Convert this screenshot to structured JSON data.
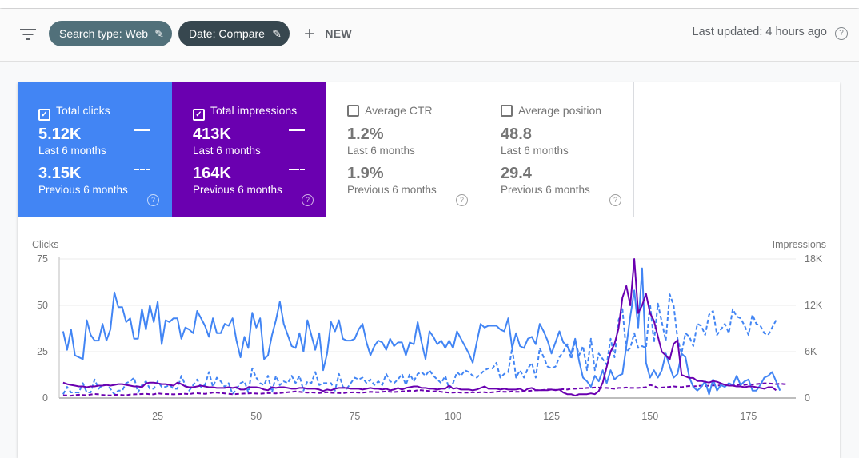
{
  "header": {
    "filter_chips": [
      {
        "label": "Search type: Web",
        "color": "#51707a"
      },
      {
        "label": "Date: Compare",
        "color": "#37474f"
      }
    ],
    "new_label": "NEW",
    "last_updated": "Last updated: 4 hours ago"
  },
  "metrics": [
    {
      "label": "Total clicks",
      "checked": true,
      "color": "#4285f4",
      "current_value": "5.12K",
      "current_period": "Last 6 months",
      "previous_value": "3.15K",
      "previous_period": "Previous 6 months"
    },
    {
      "label": "Total impressions",
      "checked": true,
      "color": "#6a00b0",
      "current_value": "413K",
      "current_period": "Last 6 months",
      "previous_value": "164K",
      "previous_period": "Previous 6 months"
    },
    {
      "label": "Average CTR",
      "checked": false,
      "current_value": "1.2%",
      "current_period": "Last 6 months",
      "previous_value": "1.9%",
      "previous_period": "Previous 6 months"
    },
    {
      "label": "Average position",
      "checked": false,
      "current_value": "48.8",
      "current_period": "Last 6 months",
      "previous_value": "29.4",
      "previous_period": "Previous 6 months"
    }
  ],
  "chart_data": {
    "type": "line",
    "ylabel_left": "Clicks",
    "ylabel_right": "Impressions",
    "ylim_left": [
      0,
      75
    ],
    "ylim_right": [
      0,
      18000
    ],
    "yticks_left": [
      "0",
      "25",
      "50",
      "75"
    ],
    "yticks_right": [
      "0",
      "6K",
      "12K",
      "18K"
    ],
    "xticks": [
      25,
      50,
      75,
      100,
      125,
      150,
      175
    ],
    "xlim": [
      0,
      187
    ],
    "grid": true,
    "series": [
      {
        "metric": "clicks",
        "period": "current",
        "axis": "left",
        "style": "solid",
        "color": "#4285f4",
        "values": [
          36,
          26,
          37,
          23,
          22,
          21,
          42,
          34,
          31,
          31,
          40,
          31,
          37,
          57,
          49,
          49,
          41,
          43,
          32,
          32,
          48,
          37,
          50,
          41,
          52,
          29,
          42,
          41,
          43,
          43,
          32,
          38,
          37,
          35,
          47,
          43,
          39,
          33,
          43,
          35,
          35,
          40,
          39,
          43,
          31,
          22,
          33,
          27,
          46,
          38,
          43,
          21,
          23,
          34,
          42,
          52,
          40,
          34,
          28,
          27,
          35,
          25,
          42,
          34,
          26,
          35,
          15,
          24,
          41,
          36,
          42,
          32,
          31,
          31,
          32,
          37,
          40,
          30,
          23,
          28,
          31,
          30,
          26,
          32,
          28,
          30,
          30,
          23,
          30,
          29,
          41,
          30,
          21,
          36,
          33,
          29,
          31,
          27,
          31,
          27,
          36,
          32,
          28,
          24,
          19,
          30,
          40,
          38,
          39,
          39,
          39,
          37,
          36,
          43,
          27,
          35,
          28,
          27,
          32,
          33,
          29,
          40,
          36,
          31,
          24,
          30,
          36,
          30,
          28,
          24,
          32,
          20,
          11,
          9,
          6,
          12,
          9,
          15,
          8,
          15,
          10,
          12,
          13,
          28,
          44,
          58,
          38,
          70,
          19,
          11,
          15,
          11,
          15,
          24,
          17,
          11,
          13,
          24,
          22,
          11,
          6,
          4,
          6,
          9,
          2,
          10,
          4,
          7,
          6,
          8,
          7,
          12,
          7,
          9,
          10,
          4,
          4,
          7,
          11,
          12,
          14,
          9,
          4
        ]
      },
      {
        "metric": "clicks",
        "period": "previous",
        "axis": "left",
        "style": "dashed",
        "color": "#4285f4",
        "values": [
          2,
          6,
          3,
          3,
          3,
          8,
          3,
          3,
          10,
          5,
          7,
          7,
          5,
          2,
          4,
          4,
          8,
          9,
          11,
          3,
          7,
          9,
          5,
          5,
          9,
          6,
          6,
          7,
          5,
          5,
          12,
          7,
          4,
          7,
          10,
          6,
          7,
          14,
          6,
          11,
          9,
          6,
          8,
          2,
          5,
          8,
          9,
          3,
          16,
          11,
          8,
          7,
          12,
          3,
          12,
          7,
          9,
          8,
          12,
          8,
          12,
          4,
          9,
          8,
          14,
          7,
          8,
          8,
          8,
          4,
          13,
          6,
          5,
          8,
          11,
          10,
          11,
          8,
          10,
          7,
          9,
          7,
          13,
          9,
          8,
          10,
          13,
          7,
          13,
          9,
          13,
          14,
          12,
          15,
          12,
          10,
          8,
          12,
          5,
          8,
          14,
          12,
          15,
          14,
          12,
          11,
          13,
          15,
          16,
          16,
          19,
          11,
          13,
          14,
          27,
          11,
          15,
          11,
          16,
          19,
          11,
          27,
          22,
          17,
          16,
          17,
          22,
          25,
          29,
          21,
          31,
          23,
          28,
          15,
          32,
          15,
          24,
          21,
          18,
          32,
          22,
          42,
          48,
          25,
          27,
          35,
          27,
          28,
          27,
          51,
          30,
          51,
          41,
          31,
          56,
          50,
          32,
          24,
          35,
          33,
          28,
          40,
          39,
          34,
          45,
          47,
          34,
          37,
          40,
          35,
          48,
          44,
          43,
          39,
          34,
          45,
          40,
          39,
          35,
          34,
          38,
          42
        ]
      },
      {
        "metric": "impressions",
        "period": "current",
        "axis": "right",
        "style": "solid",
        "color": "#6a00b0",
        "values": [
          2000,
          1800,
          1700,
          1600,
          1500,
          1500,
          1400,
          1500,
          1500,
          1600,
          1600,
          1700,
          1600,
          1700,
          1800,
          1800,
          1700,
          1600,
          1500,
          1500,
          1400,
          1900,
          2000,
          2000,
          1900,
          1800,
          1800,
          1700,
          1600,
          2000,
          1800,
          1500,
          1400,
          1400,
          1500,
          1600,
          1500,
          1400,
          1400,
          1300,
          1300,
          1300,
          1400,
          1300,
          1400,
          1100,
          1100,
          1400,
          1400,
          1400,
          1300,
          1100,
          1000,
          1400,
          1300,
          1400,
          1400,
          1300,
          1200,
          1200,
          1300,
          1300,
          1200,
          1200,
          1200,
          1100,
          900,
          1100,
          1000,
          1200,
          1300,
          1300,
          1300,
          1200,
          1200,
          1200,
          1100,
          1200,
          1300,
          1200,
          1200,
          1100,
          1200,
          1000,
          1100,
          1300,
          1100,
          1300,
          1400,
          1500,
          1500,
          1300,
          1300,
          1200,
          1200,
          1100,
          1200,
          1200,
          1600,
          1200,
          1300,
          1100,
          1100,
          1100,
          1000,
          1100,
          1300,
          1500,
          1200,
          1200,
          1200,
          1100,
          1200,
          1100,
          1100,
          1100,
          1200,
          900,
          1200,
          1300,
          1000,
          1000,
          1000,
          1000,
          1100,
          1000,
          1100,
          700,
          500,
          500,
          300,
          500,
          500,
          500,
          600,
          500,
          900,
          2000,
          4000,
          6000,
          7000,
          9000,
          13000,
          14500,
          12000,
          18000,
          11000,
          12000,
          13500,
          11000,
          10000,
          8000,
          6000,
          5500,
          5000,
          7000,
          7500,
          3000,
          2800,
          2600,
          2600,
          2200,
          2200,
          2100,
          2000,
          2200,
          2100,
          1900,
          1700,
          1600,
          1600,
          1500,
          1500,
          1400,
          1500,
          1500,
          1400,
          1300,
          1200,
          1400,
          1400,
          1000
        ]
      },
      {
        "metric": "impressions",
        "period": "previous",
        "axis": "right",
        "style": "dashed",
        "color": "#6a00b0",
        "values": [
          350,
          330,
          300,
          380,
          420,
          380,
          350,
          450,
          520,
          480,
          400,
          350,
          330,
          400,
          420,
          380,
          350,
          450,
          480,
          500,
          520,
          550,
          500,
          480,
          600,
          550,
          520,
          500,
          480,
          500,
          520,
          550,
          500,
          600,
          620,
          580,
          550,
          600,
          700,
          700,
          650,
          600,
          550,
          500,
          520,
          550,
          580,
          600,
          620,
          580,
          550,
          600,
          650,
          620,
          600,
          650,
          700,
          750,
          800,
          850,
          800,
          750,
          700,
          720,
          700,
          650,
          700,
          750,
          680,
          650,
          650,
          620,
          700,
          720,
          750,
          700,
          700,
          750,
          800,
          780,
          750,
          800,
          850,
          800,
          780,
          820,
          850,
          900,
          950,
          900,
          1000,
          1000,
          950,
          900,
          850,
          900,
          800,
          750,
          700,
          700,
          750,
          700,
          700,
          700,
          750,
          700,
          750,
          750,
          700,
          750,
          800,
          850,
          800,
          800,
          850,
          800,
          800,
          850,
          900,
          950,
          1000,
          1000,
          1050,
          1100,
          1100,
          1050,
          1100,
          1150,
          1100,
          1200,
          1200,
          1250,
          1250,
          1300,
          1300,
          1350,
          1350,
          1300,
          1300,
          1250,
          1200,
          1300,
          1300,
          1350,
          1300,
          1300,
          1300,
          1350,
          1400,
          1700,
          1550,
          1300,
          1350,
          1400,
          1450,
          1500,
          1450,
          1400,
          1500,
          1550,
          1500,
          1550,
          1600,
          1550,
          1600,
          1650,
          1600,
          1650,
          1700,
          1700,
          1650,
          1700,
          1750,
          1700,
          1800,
          1750,
          1800,
          1850,
          1900,
          1900,
          1850,
          1800,
          1850,
          1800,
          1800
        ]
      }
    ]
  }
}
